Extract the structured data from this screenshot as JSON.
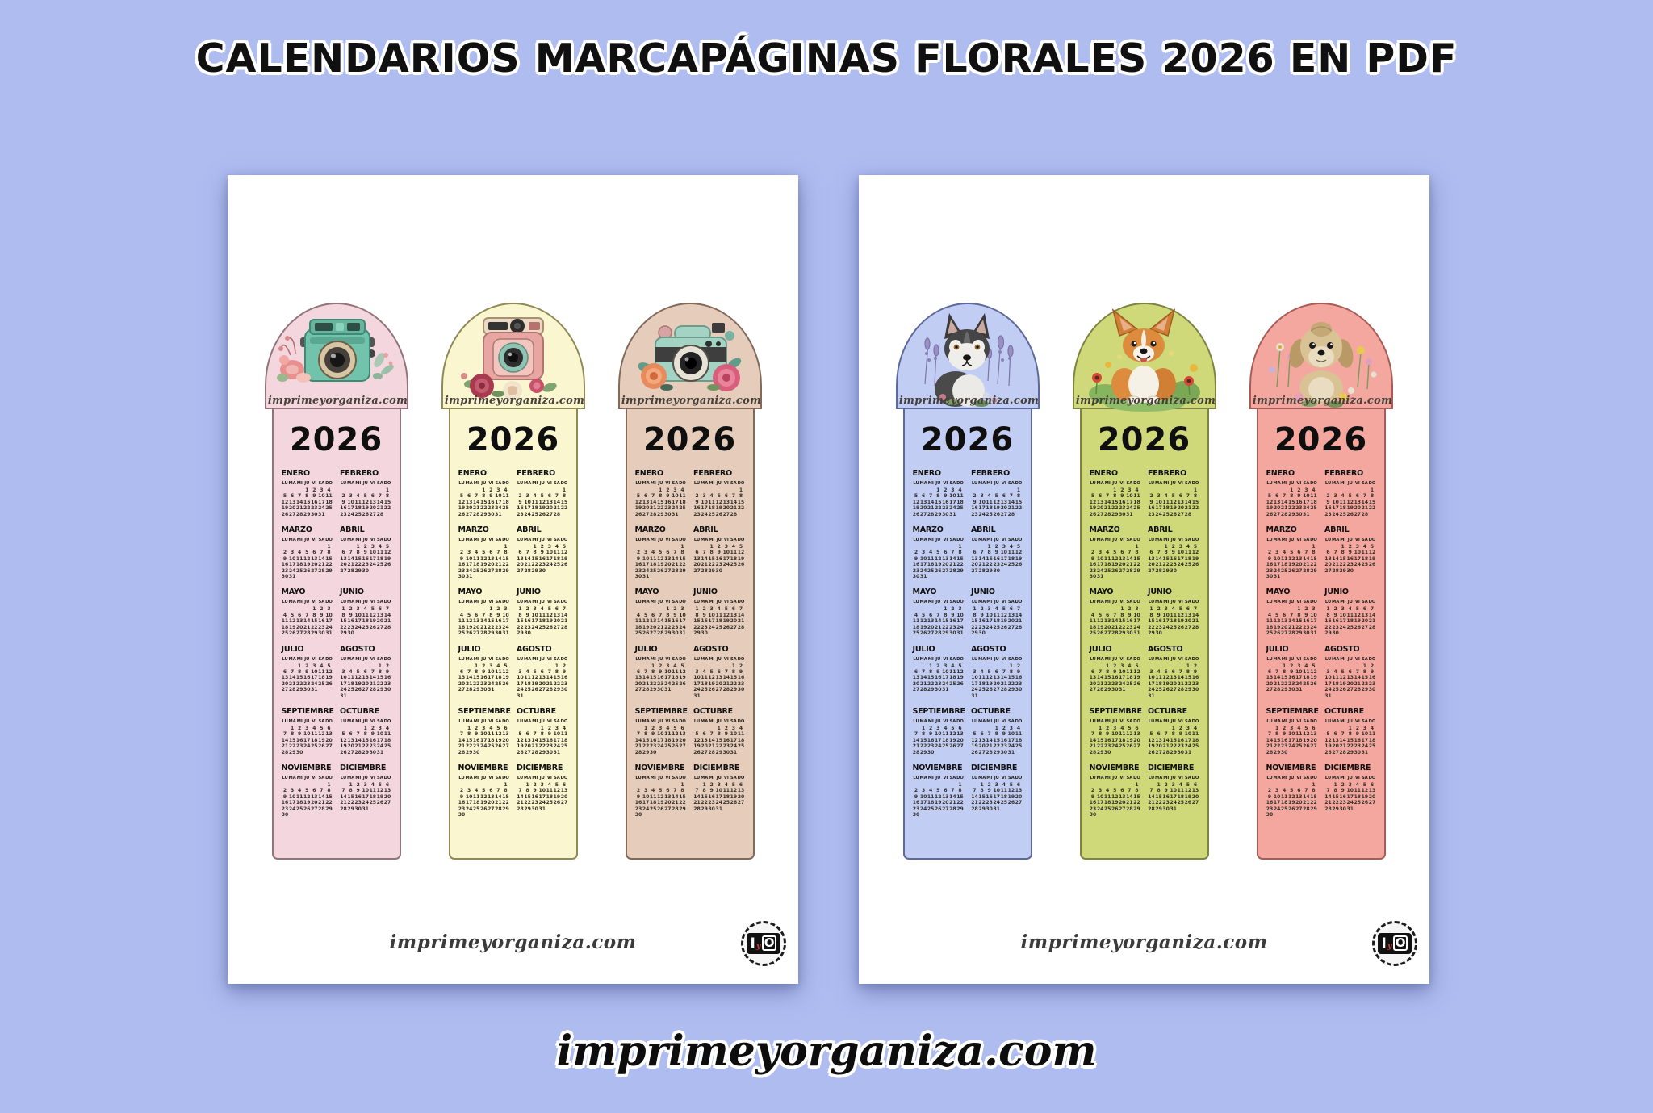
{
  "title": "CALENDARIOS MARCAPÁGINAS FLORALES 2026 EN PDF",
  "footer_site": "imprimeyorganiza.com",
  "watermark": "imprimeyorganiza.com",
  "year": "2026",
  "page_footer": {
    "site": "imprimeyorganiza.com",
    "logo": {
      "i": "I",
      "y": "y",
      "o": "O"
    }
  },
  "colors": {
    "background": "#aebcf0",
    "page": "#ffffff",
    "title_text": "#101010",
    "title_outline": "#ffffff",
    "calendar_text": "#35302b"
  },
  "day_headers": [
    "LU",
    "MA",
    "MI",
    "JU",
    "VI",
    "SA",
    "DO"
  ],
  "months": [
    {
      "name": "ENERO",
      "weeks": [
        [
          "",
          "",
          "",
          "1",
          "2",
          "3",
          "4"
        ],
        [
          "5",
          "6",
          "7",
          "8",
          "9",
          "10",
          "11"
        ],
        [
          "12",
          "13",
          "14",
          "15",
          "16",
          "17",
          "18"
        ],
        [
          "19",
          "20",
          "21",
          "22",
          "23",
          "24",
          "25"
        ],
        [
          "26",
          "27",
          "28",
          "29",
          "30",
          "31",
          ""
        ]
      ]
    },
    {
      "name": "FEBRERO",
      "weeks": [
        [
          "",
          "",
          "",
          "",
          "",
          "",
          "1"
        ],
        [
          "2",
          "3",
          "4",
          "5",
          "6",
          "7",
          "8"
        ],
        [
          "9",
          "10",
          "11",
          "12",
          "13",
          "14",
          "15"
        ],
        [
          "16",
          "17",
          "18",
          "19",
          "20",
          "21",
          "22"
        ],
        [
          "23",
          "24",
          "25",
          "26",
          "27",
          "28",
          ""
        ]
      ]
    },
    {
      "name": "MARZO",
      "weeks": [
        [
          "",
          "",
          "",
          "",
          "",
          "",
          "1"
        ],
        [
          "2",
          "3",
          "4",
          "5",
          "6",
          "7",
          "8"
        ],
        [
          "9",
          "10",
          "11",
          "12",
          "13",
          "14",
          "15"
        ],
        [
          "16",
          "17",
          "18",
          "19",
          "20",
          "21",
          "22"
        ],
        [
          "23",
          "24",
          "25",
          "26",
          "27",
          "28",
          "29"
        ],
        [
          "30",
          "31",
          "",
          "",
          "",
          "",
          ""
        ]
      ]
    },
    {
      "name": "ABRIL",
      "weeks": [
        [
          "",
          "",
          "1",
          "2",
          "3",
          "4",
          "5"
        ],
        [
          "6",
          "7",
          "8",
          "9",
          "10",
          "11",
          "12"
        ],
        [
          "13",
          "14",
          "15",
          "16",
          "17",
          "18",
          "19"
        ],
        [
          "20",
          "21",
          "22",
          "23",
          "24",
          "25",
          "26"
        ],
        [
          "27",
          "28",
          "29",
          "30",
          "",
          "",
          ""
        ]
      ]
    },
    {
      "name": "MAYO",
      "weeks": [
        [
          "",
          "",
          "",
          "",
          "1",
          "2",
          "3"
        ],
        [
          "4",
          "5",
          "6",
          "7",
          "8",
          "9",
          "10"
        ],
        [
          "11",
          "12",
          "13",
          "14",
          "15",
          "16",
          "17"
        ],
        [
          "18",
          "19",
          "20",
          "21",
          "22",
          "23",
          "24"
        ],
        [
          "25",
          "26",
          "27",
          "28",
          "29",
          "30",
          "31"
        ]
      ]
    },
    {
      "name": "JUNIO",
      "weeks": [
        [
          "1",
          "2",
          "3",
          "4",
          "5",
          "6",
          "7"
        ],
        [
          "8",
          "9",
          "10",
          "11",
          "12",
          "13",
          "14"
        ],
        [
          "15",
          "16",
          "17",
          "18",
          "19",
          "20",
          "21"
        ],
        [
          "22",
          "23",
          "24",
          "25",
          "26",
          "27",
          "28"
        ],
        [
          "29",
          "30",
          "",
          "",
          "",
          "",
          ""
        ]
      ]
    },
    {
      "name": "JULIO",
      "weeks": [
        [
          "",
          "",
          "1",
          "2",
          "3",
          "4",
          "5"
        ],
        [
          "6",
          "7",
          "8",
          "9",
          "10",
          "11",
          "12"
        ],
        [
          "13",
          "14",
          "15",
          "16",
          "17",
          "18",
          "19"
        ],
        [
          "20",
          "21",
          "22",
          "23",
          "24",
          "25",
          "26"
        ],
        [
          "27",
          "28",
          "29",
          "30",
          "31",
          "",
          ""
        ]
      ]
    },
    {
      "name": "AGOSTO",
      "weeks": [
        [
          "",
          "",
          "",
          "",
          "",
          "1",
          "2"
        ],
        [
          "3",
          "4",
          "5",
          "6",
          "7",
          "8",
          "9"
        ],
        [
          "10",
          "11",
          "12",
          "13",
          "14",
          "15",
          "16"
        ],
        [
          "17",
          "18",
          "19",
          "20",
          "21",
          "22",
          "23"
        ],
        [
          "24",
          "25",
          "26",
          "27",
          "28",
          "29",
          "30"
        ],
        [
          "31",
          "",
          "",
          "",
          "",
          "",
          ""
        ]
      ]
    },
    {
      "name": "SEPTIEMBRE",
      "weeks": [
        [
          "",
          "1",
          "2",
          "3",
          "4",
          "5",
          "6"
        ],
        [
          "7",
          "8",
          "9",
          "10",
          "11",
          "12",
          "13"
        ],
        [
          "14",
          "15",
          "16",
          "17",
          "18",
          "19",
          "20"
        ],
        [
          "21",
          "22",
          "23",
          "24",
          "25",
          "26",
          "27"
        ],
        [
          "28",
          "29",
          "30",
          "",
          "",
          "",
          ""
        ]
      ]
    },
    {
      "name": "OCTUBRE",
      "weeks": [
        [
          "",
          "",
          "",
          "1",
          "2",
          "3",
          "4"
        ],
        [
          "5",
          "6",
          "7",
          "8",
          "9",
          "10",
          "11"
        ],
        [
          "12",
          "13",
          "14",
          "15",
          "16",
          "17",
          "18"
        ],
        [
          "19",
          "20",
          "21",
          "22",
          "23",
          "24",
          "25"
        ],
        [
          "26",
          "27",
          "28",
          "29",
          "30",
          "31",
          ""
        ]
      ]
    },
    {
      "name": "NOVIEMBRE",
      "weeks": [
        [
          "",
          "",
          "",
          "",
          "",
          "",
          "1"
        ],
        [
          "2",
          "3",
          "4",
          "5",
          "6",
          "7",
          "8"
        ],
        [
          "9",
          "10",
          "11",
          "12",
          "13",
          "14",
          "15"
        ],
        [
          "16",
          "17",
          "18",
          "19",
          "20",
          "21",
          "22"
        ],
        [
          "23",
          "24",
          "25",
          "26",
          "27",
          "28",
          "29"
        ],
        [
          "30",
          "",
          "",
          "",
          "",
          "",
          ""
        ]
      ]
    },
    {
      "name": "DICIEMBRE",
      "weeks": [
        [
          "",
          "1",
          "2",
          "3",
          "4",
          "5",
          "6"
        ],
        [
          "7",
          "8",
          "9",
          "10",
          "11",
          "12",
          "13"
        ],
        [
          "14",
          "15",
          "16",
          "17",
          "18",
          "19",
          "20"
        ],
        [
          "21",
          "22",
          "23",
          "24",
          "25",
          "26",
          "27"
        ],
        [
          "28",
          "29",
          "30",
          "31",
          "",
          "",
          ""
        ]
      ]
    }
  ],
  "pages": [
    {
      "id": "cameras",
      "theme": "vintage cameras with flowers",
      "bookmarks": [
        {
          "id": "camera-teal",
          "art": "teal-vintage-camera-with-pink-flowers",
          "fill": "#f4d7de",
          "border": "#94737c"
        },
        {
          "id": "camera-pink",
          "art": "pink-retro-camera-with-roses",
          "fill": "#faf6cf",
          "border": "#8f8a55"
        },
        {
          "id": "camera-mint",
          "art": "mint-camera-with-coral-and-pink-roses",
          "fill": "#e6ccba",
          "border": "#82695a"
        }
      ]
    },
    {
      "id": "dogs",
      "theme": "watercolor dogs in flower meadows",
      "bookmarks": [
        {
          "id": "dog-husky",
          "art": "husky-in-lavender-field",
          "fill": "#c2cdf4",
          "border": "#5c699b"
        },
        {
          "id": "dog-corgi",
          "art": "corgi-in-flower-meadow",
          "fill": "#cfd97a",
          "border": "#7e833f"
        },
        {
          "id": "dog-shihtzu",
          "art": "shihtzu-in-wildflowers",
          "fill": "#f4a79e",
          "border": "#a85c55"
        }
      ]
    }
  ]
}
